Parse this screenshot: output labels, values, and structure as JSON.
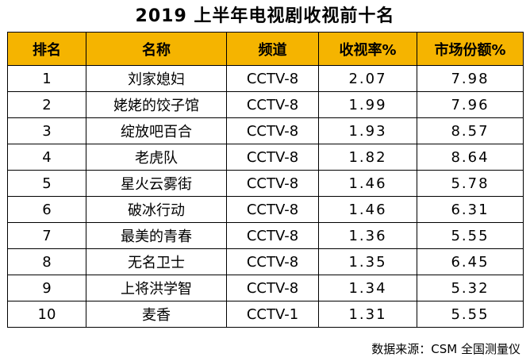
{
  "title": "2019 上半年电视剧收视前十名",
  "headers": [
    "排名",
    "名称",
    "频道",
    "收视率%",
    "市场份额%"
  ],
  "rows": [
    [
      "1",
      "刘家媳妇",
      "CCTV-8",
      "2.07",
      "7.98"
    ],
    [
      "2",
      "姥姥的饺子馆",
      "CCTV-8",
      "1.99",
      "7.96"
    ],
    [
      "3",
      "绽放吧百合",
      "CCTV-8",
      "1.93",
      "8.57"
    ],
    [
      "4",
      "老虎队",
      "CCTV-8",
      "1.82",
      "8.64"
    ],
    [
      "5",
      "星火云雾街",
      "CCTV-8",
      "1.46",
      "5.78"
    ],
    [
      "6",
      "破冰行动",
      "CCTV-8",
      "1.46",
      "6.31"
    ],
    [
      "7",
      "最美的青春",
      "CCTV-8",
      "1.36",
      "5.55"
    ],
    [
      "8",
      "无名卫士",
      "CCTV-8",
      "1.35",
      "6.45"
    ],
    [
      "9",
      "上将洪学智",
      "CCTV-8",
      "1.34",
      "5.32"
    ],
    [
      "10",
      "麦香",
      "CCTV-1",
      "1.31",
      "5.55"
    ]
  ],
  "source": "数据来源：CSM 全国测量仪",
  "colors": {
    "header_bg": "#f5b400",
    "border": "#000000"
  }
}
